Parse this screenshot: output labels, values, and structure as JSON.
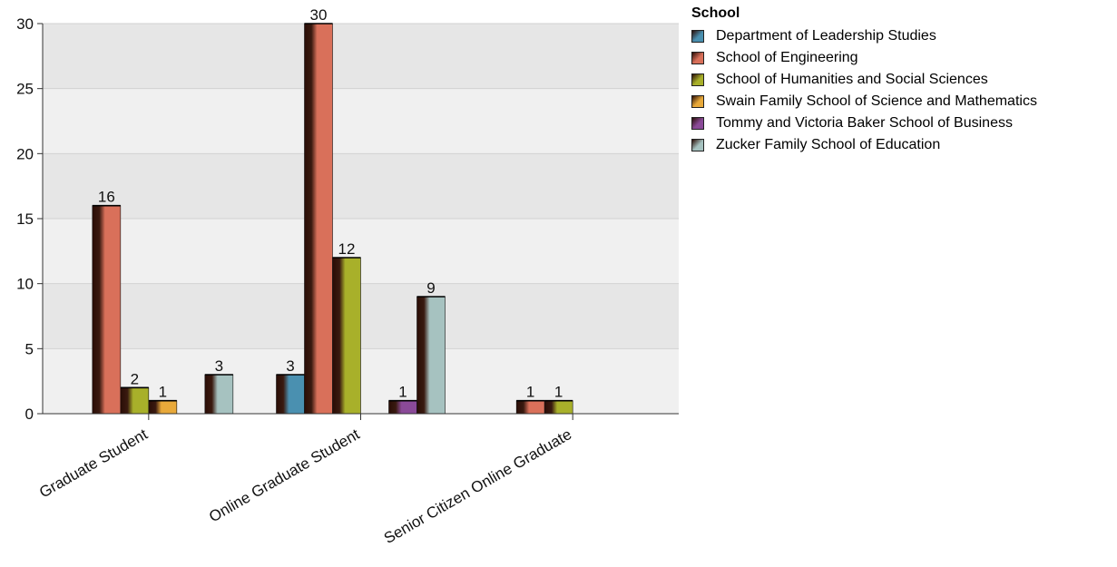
{
  "chart_data": {
    "type": "bar",
    "categories": [
      "Graduate Student",
      "Online Graduate Student",
      "Senior Citizen Online Graduate"
    ],
    "legend_title": "School",
    "series": [
      {
        "name": "Department of Leadership Studies",
        "color": "#4a90b0",
        "values": [
          null,
          3,
          null
        ]
      },
      {
        "name": "School of Engineering",
        "color": "#d9705a",
        "values": [
          16,
          30,
          1
        ]
      },
      {
        "name": "School of Humanities and Social Sciences",
        "color": "#a8b02a",
        "values": [
          2,
          12,
          1
        ]
      },
      {
        "name": "Swain Family School of Science and Mathematics",
        "color": "#e8a93a",
        "values": [
          1,
          null,
          null
        ]
      },
      {
        "name": "Tommy and Victoria Baker School of Business",
        "color": "#8a4a98",
        "values": [
          null,
          1,
          null
        ]
      },
      {
        "name": "Zucker Family School of Education",
        "color": "#a6c2c0",
        "values": [
          3,
          9,
          null
        ]
      }
    ],
    "ylim": [
      0,
      30
    ],
    "yticks": [
      0,
      5,
      10,
      15,
      20,
      25,
      30
    ],
    "legend_position": "top-right",
    "grid": true
  }
}
